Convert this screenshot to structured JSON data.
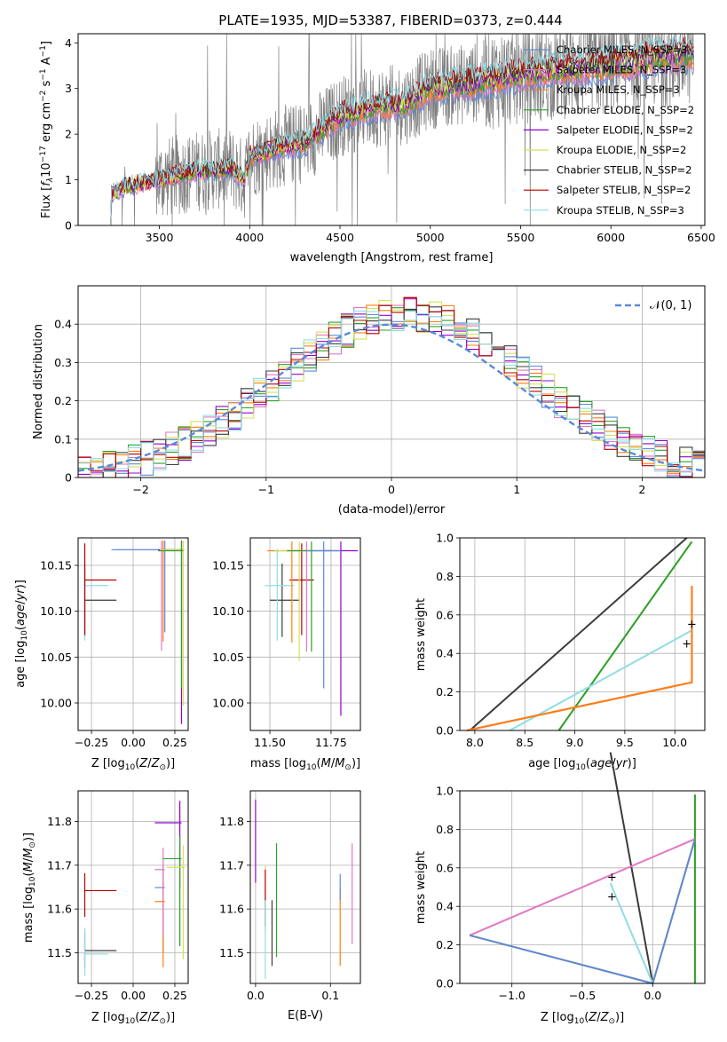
{
  "chart_data": [
    {
      "id": "spectrum",
      "type": "line",
      "title": "PLATE=1935, MJD=53387, FIBERID=0373, z=0.444",
      "xlabel": "wavelength [Angstrom, rest frame]",
      "ylabel": "Flux [f_λ 10^-17 erg cm^-2 s^-1 A^-1]",
      "xlim": [
        3050,
        6520
      ],
      "ylim": [
        0,
        4.2
      ],
      "xticks": [
        3500,
        4000,
        4500,
        5000,
        5500,
        6000,
        6500
      ],
      "yticks": [
        0,
        1,
        2,
        3,
        4
      ],
      "grid": false,
      "legend_position": "top-right",
      "legend": [
        {
          "label": "Chabrier MILES, N_SSP=3",
          "color": "#5b8ad9"
        },
        {
          "label": "Salpeter MILES, N_SSP=3",
          "color": "#e377c2"
        },
        {
          "label": "Kroupa MILES, N_SSP=3",
          "color": "#ff7f0e"
        },
        {
          "label": "Chabrier ELODIE, N_SSP=2",
          "color": "#2ca02c"
        },
        {
          "label": "Salpeter ELODIE, N_SSP=2",
          "color": "#9400d3"
        },
        {
          "label": "Kroupa ELODIE, N_SSP=2",
          "color": "#d4e157"
        },
        {
          "label": "Chabrier STELIB, N_SSP=2",
          "color": "#3c3c3c"
        },
        {
          "label": "Salpeter STELIB, N_SSP=2",
          "color": "#b50000"
        },
        {
          "label": "Kroupa STELIB, N_SSP=3",
          "color": "#8fdde5"
        }
      ],
      "data_color": "#808080",
      "model_points": [
        [
          3230,
          0
        ],
        [
          3235,
          0.7
        ],
        [
          3300,
          0.85
        ],
        [
          3500,
          1.0
        ],
        [
          3700,
          1.2
        ],
        [
          3900,
          1.25
        ],
        [
          3970,
          1.0
        ],
        [
          4000,
          1.5
        ],
        [
          4200,
          1.75
        ],
        [
          4300,
          1.8
        ],
        [
          4500,
          2.4
        ],
        [
          4700,
          2.6
        ],
        [
          4860,
          2.65
        ],
        [
          5000,
          3.0
        ],
        [
          5200,
          3.1
        ],
        [
          5500,
          3.3
        ],
        [
          5800,
          3.45
        ],
        [
          6000,
          3.5
        ],
        [
          6200,
          3.65
        ],
        [
          6450,
          3.75
        ]
      ]
    },
    {
      "id": "residuals",
      "type": "histogram",
      "xlabel": "(data-model)/error",
      "ylabel": "Normed distribution",
      "xlim": [
        -2.5,
        2.5
      ],
      "ylim": [
        0,
        0.5
      ],
      "xticks": [
        -2,
        -1,
        0,
        1,
        2
      ],
      "yticks": [
        0.0,
        0.1,
        0.2,
        0.3,
        0.4
      ],
      "grid": true,
      "legend_position": "top-right",
      "legend": [
        {
          "label": "𝒩(0, 1)",
          "color": "#5b8ad9"
        }
      ],
      "series_colors": [
        "#5b8ad9",
        "#e377c2",
        "#ff7f0e",
        "#2ca02c",
        "#9400d3",
        "#d4e157",
        "#3c3c3c",
        "#b50000",
        "#8fdde5"
      ]
    },
    {
      "id": "age-vs-Z",
      "type": "errorbar",
      "xlabel": "Z [log10(Z/Z⊙)]",
      "ylabel": "age  [log10(age/yr)]",
      "xlim": [
        -0.33,
        0.33
      ],
      "ylim": [
        9.97,
        10.18
      ],
      "xticks": [
        "-0.25",
        "0.00",
        "0.25"
      ],
      "yticks": [
        "10.00",
        "10.05",
        "10.10",
        "10.15"
      ],
      "grid": true
    },
    {
      "id": "age-vs-mass",
      "type": "errorbar",
      "xlabel": "mass [log10(M/M⊙)]",
      "xlim": [
        11.42,
        11.87
      ],
      "ylim": [
        9.97,
        10.18
      ],
      "xticks": [
        "11.50",
        "11.75"
      ],
      "yticks": [
        "10.00",
        "10.05",
        "10.10",
        "10.15"
      ],
      "grid": true
    },
    {
      "id": "weight-vs-age",
      "type": "line",
      "xlabel": "age  [log10(age/yr)]",
      "ylabel": "mass weight",
      "xlim": [
        7.85,
        10.3
      ],
      "ylim": [
        0,
        1
      ],
      "xticks": [
        "8.0",
        "8.5",
        "9.0",
        "9.5",
        "10.0"
      ],
      "yticks": [
        "0.0",
        "0.2",
        "0.4",
        "0.6",
        "0.8",
        "1.0"
      ],
      "grid": true
    },
    {
      "id": "mass-vs-Z",
      "type": "errorbar",
      "xlabel": "Z [log10(Z/Z⊙)]",
      "ylabel": "mass [log10(M/M⊙)]",
      "xlim": [
        -0.33,
        0.33
      ],
      "ylim": [
        11.43,
        11.87
      ],
      "xticks": [
        "-0.25",
        "0.00",
        "0.25"
      ],
      "yticks": [
        "11.5",
        "11.6",
        "11.7",
        "11.8"
      ],
      "grid": true
    },
    {
      "id": "mass-vs-ebv",
      "type": "errorbar",
      "xlabel": "E(B-V)",
      "xlim": [
        -0.007,
        0.14
      ],
      "ylim": [
        11.43,
        11.87
      ],
      "xticks": [
        "0.0",
        "0.1"
      ],
      "yticks": [
        "11.5",
        "11.6",
        "11.7",
        "11.8"
      ],
      "grid": true
    },
    {
      "id": "weight-vs-Z",
      "type": "line",
      "xlabel": "Z [log10(Z/Z⊙)]",
      "ylabel": "mass weight",
      "xlim": [
        -1.37,
        0.37
      ],
      "ylim": [
        0,
        1
      ],
      "xticks": [
        "−1.0",
        "−0.5",
        "0.0"
      ],
      "yticks": [
        "0.0",
        "0.2",
        "0.4",
        "0.6",
        "0.8",
        "1.0"
      ],
      "grid": true
    }
  ]
}
